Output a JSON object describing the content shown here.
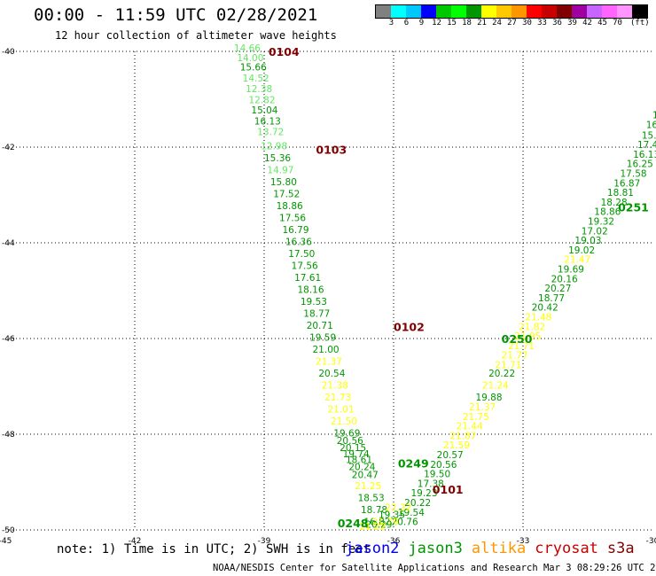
{
  "header": {
    "title": "00:00 - 11:59 UTC 02/28/2021",
    "subtitle": "12 hour collection of altimeter wave heights"
  },
  "colorbar": {
    "colors": [
      "#808080",
      "#00ffff",
      "#00c8ff",
      "#0000ff",
      "#00c800",
      "#00ff00",
      "#009600",
      "#ffff00",
      "#ffc800",
      "#ff9600",
      "#ff0000",
      "#c80000",
      "#800000",
      "#a000a0",
      "#c864ff",
      "#ff64ff",
      "#ff96ff",
      "#000000"
    ],
    "labels": [
      "3",
      "6",
      "9",
      "12",
      "15",
      "18",
      "21",
      "24",
      "27",
      "30",
      "33",
      "36",
      "39",
      "42",
      "45",
      "70"
    ],
    "unit": "(ft)"
  },
  "footer": {
    "note": "note: 1) Time is in UTC; 2) SWH is in feet",
    "credit": "NOAA/NESDIS Center for Satellite Applications and Research   Mar  3 08:29:26 UTC 2021"
  },
  "legend": [
    {
      "name": "jason2",
      "color": "#0000ff"
    },
    {
      "name": "jason3",
      "color": "#009600"
    },
    {
      "name": "altika",
      "color": "#ff9600"
    },
    {
      "name": "cryosat",
      "color": "#c80000"
    },
    {
      "name": "s3a",
      "color": "#800000"
    }
  ],
  "chart_data": {
    "type": "scatter",
    "xlim": [
      -45,
      -30
    ],
    "ylim": [
      -50,
      -40
    ],
    "xticks": [
      "-45",
      "-42",
      "-39",
      "-36",
      "-33",
      "-30"
    ],
    "yticks": [
      "-40",
      "-42",
      "-44",
      "-46",
      "-48",
      "-50"
    ],
    "grid": true,
    "tracks": [
      {
        "label": "0104",
        "color": "#800000",
        "lon": -38.9,
        "lat": -40.0
      },
      {
        "label": "0103",
        "color": "#800000",
        "lon": -37.8,
        "lat": -42.05
      },
      {
        "label": "0102",
        "color": "#800000",
        "lon": -36.0,
        "lat": -45.75
      },
      {
        "label": "0101",
        "color": "#800000",
        "lon": -35.1,
        "lat": -49.15
      },
      {
        "label": "0251",
        "color": "#009600",
        "lon": -30.8,
        "lat": -43.25
      },
      {
        "label": "0250",
        "color": "#009600",
        "lon": -33.5,
        "lat": -46.0
      },
      {
        "label": "0249",
        "color": "#009600",
        "lon": -35.9,
        "lat": -48.6
      },
      {
        "label": "0248",
        "color": "#009600",
        "lon": -37.3,
        "lat": -49.85
      }
    ],
    "points": [
      {
        "lon": -39.7,
        "lat": -40.0,
        "swh": "14.66",
        "color": "#64e664"
      },
      {
        "lon": -39.63,
        "lat": -40.2,
        "swh": "14.00",
        "color": "#64e664"
      },
      {
        "lon": -39.56,
        "lat": -40.4,
        "swh": "15.66",
        "color": "#009600"
      },
      {
        "lon": -39.5,
        "lat": -40.63,
        "swh": "14.52",
        "color": "#64e664"
      },
      {
        "lon": -39.43,
        "lat": -40.85,
        "swh": "12.38",
        "color": "#64e664"
      },
      {
        "lon": -39.36,
        "lat": -41.08,
        "swh": "12.82",
        "color": "#64e664"
      },
      {
        "lon": -39.3,
        "lat": -41.3,
        "swh": "15.04",
        "color": "#009600"
      },
      {
        "lon": -39.23,
        "lat": -41.53,
        "swh": "16.13",
        "color": "#009600"
      },
      {
        "lon": -39.16,
        "lat": -41.75,
        "swh": "13.72",
        "color": "#64e664"
      },
      {
        "lon": -39.08,
        "lat": -42.05,
        "swh": "12.98",
        "color": "#64e664"
      },
      {
        "lon": -39.0,
        "lat": -42.3,
        "swh": "15.36",
        "color": "#009600"
      },
      {
        "lon": -38.93,
        "lat": -42.55,
        "swh": "14.97",
        "color": "#64e664"
      },
      {
        "lon": -38.86,
        "lat": -42.8,
        "swh": "15.80",
        "color": "#009600"
      },
      {
        "lon": -38.79,
        "lat": -43.05,
        "swh": "17.52",
        "color": "#009600"
      },
      {
        "lon": -38.72,
        "lat": -43.3,
        "swh": "18.86",
        "color": "#009600"
      },
      {
        "lon": -38.65,
        "lat": -43.55,
        "swh": "17.56",
        "color": "#009600"
      },
      {
        "lon": -38.58,
        "lat": -43.8,
        "swh": "16.79",
        "color": "#009600"
      },
      {
        "lon": -38.51,
        "lat": -44.05,
        "swh": "16.36",
        "color": "#009600"
      },
      {
        "lon": -38.44,
        "lat": -44.3,
        "swh": "17.50",
        "color": "#009600"
      },
      {
        "lon": -38.37,
        "lat": -44.55,
        "swh": "17.56",
        "color": "#009600"
      },
      {
        "lon": -38.3,
        "lat": -44.8,
        "swh": "17.61",
        "color": "#009600"
      },
      {
        "lon": -38.23,
        "lat": -45.05,
        "swh": "18.16",
        "color": "#009600"
      },
      {
        "lon": -38.16,
        "lat": -45.3,
        "swh": "19.53",
        "color": "#009600"
      },
      {
        "lon": -38.09,
        "lat": -45.55,
        "swh": "18.77",
        "color": "#009600"
      },
      {
        "lon": -38.02,
        "lat": -45.8,
        "swh": "20.71",
        "color": "#009600"
      },
      {
        "lon": -37.95,
        "lat": -46.05,
        "swh": "19.59",
        "color": "#009600"
      },
      {
        "lon": -37.88,
        "lat": -46.3,
        "swh": "21.00",
        "color": "#009600"
      },
      {
        "lon": -37.81,
        "lat": -46.55,
        "swh": "21.37",
        "color": "#ffff00"
      },
      {
        "lon": -37.74,
        "lat": -46.8,
        "swh": "20.54",
        "color": "#009600"
      },
      {
        "lon": -37.67,
        "lat": -47.05,
        "swh": "21.38",
        "color": "#ffff00"
      },
      {
        "lon": -37.6,
        "lat": -47.3,
        "swh": "21.73",
        "color": "#ffff00"
      },
      {
        "lon": -37.53,
        "lat": -47.55,
        "swh": "21.01",
        "color": "#ffff00"
      },
      {
        "lon": -37.46,
        "lat": -47.8,
        "swh": "21.50",
        "color": "#ffff00"
      },
      {
        "lon": -37.39,
        "lat": -48.05,
        "swh": "19.69",
        "color": "#009600"
      },
      {
        "lon": -37.32,
        "lat": -48.2,
        "swh": "20.56",
        "color": "#009600"
      },
      {
        "lon": -37.25,
        "lat": -48.35,
        "swh": "20.15",
        "color": "#009600"
      },
      {
        "lon": -37.18,
        "lat": -48.48,
        "swh": "19.74",
        "color": "#009600"
      },
      {
        "lon": -37.11,
        "lat": -48.6,
        "swh": "18.61",
        "color": "#009600"
      },
      {
        "lon": -37.04,
        "lat": -48.75,
        "swh": "20.24",
        "color": "#009600"
      },
      {
        "lon": -36.97,
        "lat": -48.92,
        "swh": "20.47",
        "color": "#009600"
      },
      {
        "lon": -36.9,
        "lat": -49.15,
        "swh": "21.25",
        "color": "#ffff00"
      },
      {
        "lon": -36.83,
        "lat": -49.4,
        "swh": "18.53",
        "color": "#009600"
      },
      {
        "lon": -36.76,
        "lat": -49.65,
        "swh": "18.78",
        "color": "#009600"
      },
      {
        "lon": -36.69,
        "lat": -49.9,
        "swh": "16.82",
        "color": "#009600"
      },
      {
        "lon": -30.0,
        "lat": -41.4,
        "swh": "15",
        "color": "#009600"
      },
      {
        "lon": -30.15,
        "lat": -41.6,
        "swh": "16.7",
        "color": "#009600"
      },
      {
        "lon": -30.25,
        "lat": -41.82,
        "swh": "15.7",
        "color": "#009600"
      },
      {
        "lon": -30.35,
        "lat": -42.02,
        "swh": "17.43",
        "color": "#009600"
      },
      {
        "lon": -30.45,
        "lat": -42.22,
        "swh": "16.13",
        "color": "#009600"
      },
      {
        "lon": -30.6,
        "lat": -42.42,
        "swh": "16.25",
        "color": "#009600"
      },
      {
        "lon": -30.75,
        "lat": -42.62,
        "swh": "17.58",
        "color": "#009600"
      },
      {
        "lon": -30.9,
        "lat": -42.82,
        "swh": "16.87",
        "color": "#009600"
      },
      {
        "lon": -31.05,
        "lat": -43.02,
        "swh": "18.81",
        "color": "#009600"
      },
      {
        "lon": -31.2,
        "lat": -43.22,
        "swh": "18.28",
        "color": "#009600"
      },
      {
        "lon": -31.35,
        "lat": -43.42,
        "swh": "18.86",
        "color": "#009600"
      },
      {
        "lon": -31.5,
        "lat": -43.62,
        "swh": "19.32",
        "color": "#009600"
      },
      {
        "lon": -31.65,
        "lat": -43.82,
        "swh": "17.02",
        "color": "#009600"
      },
      {
        "lon": -31.8,
        "lat": -44.02,
        "swh": "19.03",
        "color": "#009600"
      },
      {
        "lon": -31.95,
        "lat": -44.22,
        "swh": "19.02",
        "color": "#009600"
      },
      {
        "lon": -32.05,
        "lat": -44.42,
        "swh": "21.47",
        "color": "#ffff00"
      },
      {
        "lon": -32.2,
        "lat": -44.62,
        "swh": "19.69",
        "color": "#009600"
      },
      {
        "lon": -32.35,
        "lat": -44.82,
        "swh": "20.16",
        "color": "#009600"
      },
      {
        "lon": -32.5,
        "lat": -45.02,
        "swh": "20.27",
        "color": "#009600"
      },
      {
        "lon": -32.65,
        "lat": -45.22,
        "swh": "18.77",
        "color": "#009600"
      },
      {
        "lon": -32.8,
        "lat": -45.42,
        "swh": "20.42",
        "color": "#009600"
      },
      {
        "lon": -32.95,
        "lat": -45.62,
        "swh": "21.48",
        "color": "#ffff00"
      },
      {
        "lon": -33.1,
        "lat": -45.82,
        "swh": "21.82",
        "color": "#ffff00"
      },
      {
        "lon": -33.2,
        "lat": -46.02,
        "swh": "21.95",
        "color": "#ffff00"
      },
      {
        "lon": -33.35,
        "lat": -46.22,
        "swh": "21.71",
        "color": "#ffff00"
      },
      {
        "lon": -33.5,
        "lat": -46.42,
        "swh": "21.77",
        "color": "#ffff00"
      },
      {
        "lon": -33.65,
        "lat": -46.62,
        "swh": "21.71",
        "color": "#ffff00"
      },
      {
        "lon": -33.8,
        "lat": -46.8,
        "swh": "20.22",
        "color": "#009600"
      },
      {
        "lon": -33.95,
        "lat": -47.05,
        "swh": "21.24",
        "color": "#ffff00"
      },
      {
        "lon": -34.1,
        "lat": -47.3,
        "swh": "19.88",
        "color": "#009600"
      },
      {
        "lon": -34.25,
        "lat": -47.5,
        "swh": "21.37",
        "color": "#ffff00"
      },
      {
        "lon": -34.4,
        "lat": -47.7,
        "swh": "21.75",
        "color": "#ffff00"
      },
      {
        "lon": -34.55,
        "lat": -47.9,
        "swh": "21.44",
        "color": "#ffff00"
      },
      {
        "lon": -34.7,
        "lat": -48.1,
        "swh": "21.87",
        "color": "#ffff00"
      },
      {
        "lon": -34.85,
        "lat": -48.3,
        "swh": "21.59",
        "color": "#ffff00"
      },
      {
        "lon": -35.0,
        "lat": -48.5,
        "swh": "20.57",
        "color": "#009600"
      },
      {
        "lon": -35.15,
        "lat": -48.7,
        "swh": "20.56",
        "color": "#009600"
      },
      {
        "lon": -35.3,
        "lat": -48.9,
        "swh": "19.50",
        "color": "#009600"
      },
      {
        "lon": -35.45,
        "lat": -49.1,
        "swh": "17.38",
        "color": "#009600"
      },
      {
        "lon": -35.6,
        "lat": -49.3,
        "swh": "19.23",
        "color": "#009600"
      },
      {
        "lon": -35.75,
        "lat": -49.5,
        "swh": "20.22",
        "color": "#009600"
      },
      {
        "lon": -35.9,
        "lat": -49.7,
        "swh": "19.54",
        "color": "#009600"
      },
      {
        "lon": -36.05,
        "lat": -49.9,
        "swh": "20.76",
        "color": "#009600"
      },
      {
        "lon": -36.2,
        "lat": -49.6,
        "swh": "22.32",
        "color": "#ffff00"
      },
      {
        "lon": -36.35,
        "lat": -49.75,
        "swh": "19.35",
        "color": "#009600"
      },
      {
        "lon": -36.5,
        "lat": -49.9,
        "swh": "21.79",
        "color": "#ffff00"
      },
      {
        "lon": -36.65,
        "lat": -49.95,
        "swh": "20.29",
        "color": "#009600"
      },
      {
        "lon": -36.8,
        "lat": -50.0,
        "swh": "21.22",
        "color": "#ffff00"
      }
    ]
  }
}
